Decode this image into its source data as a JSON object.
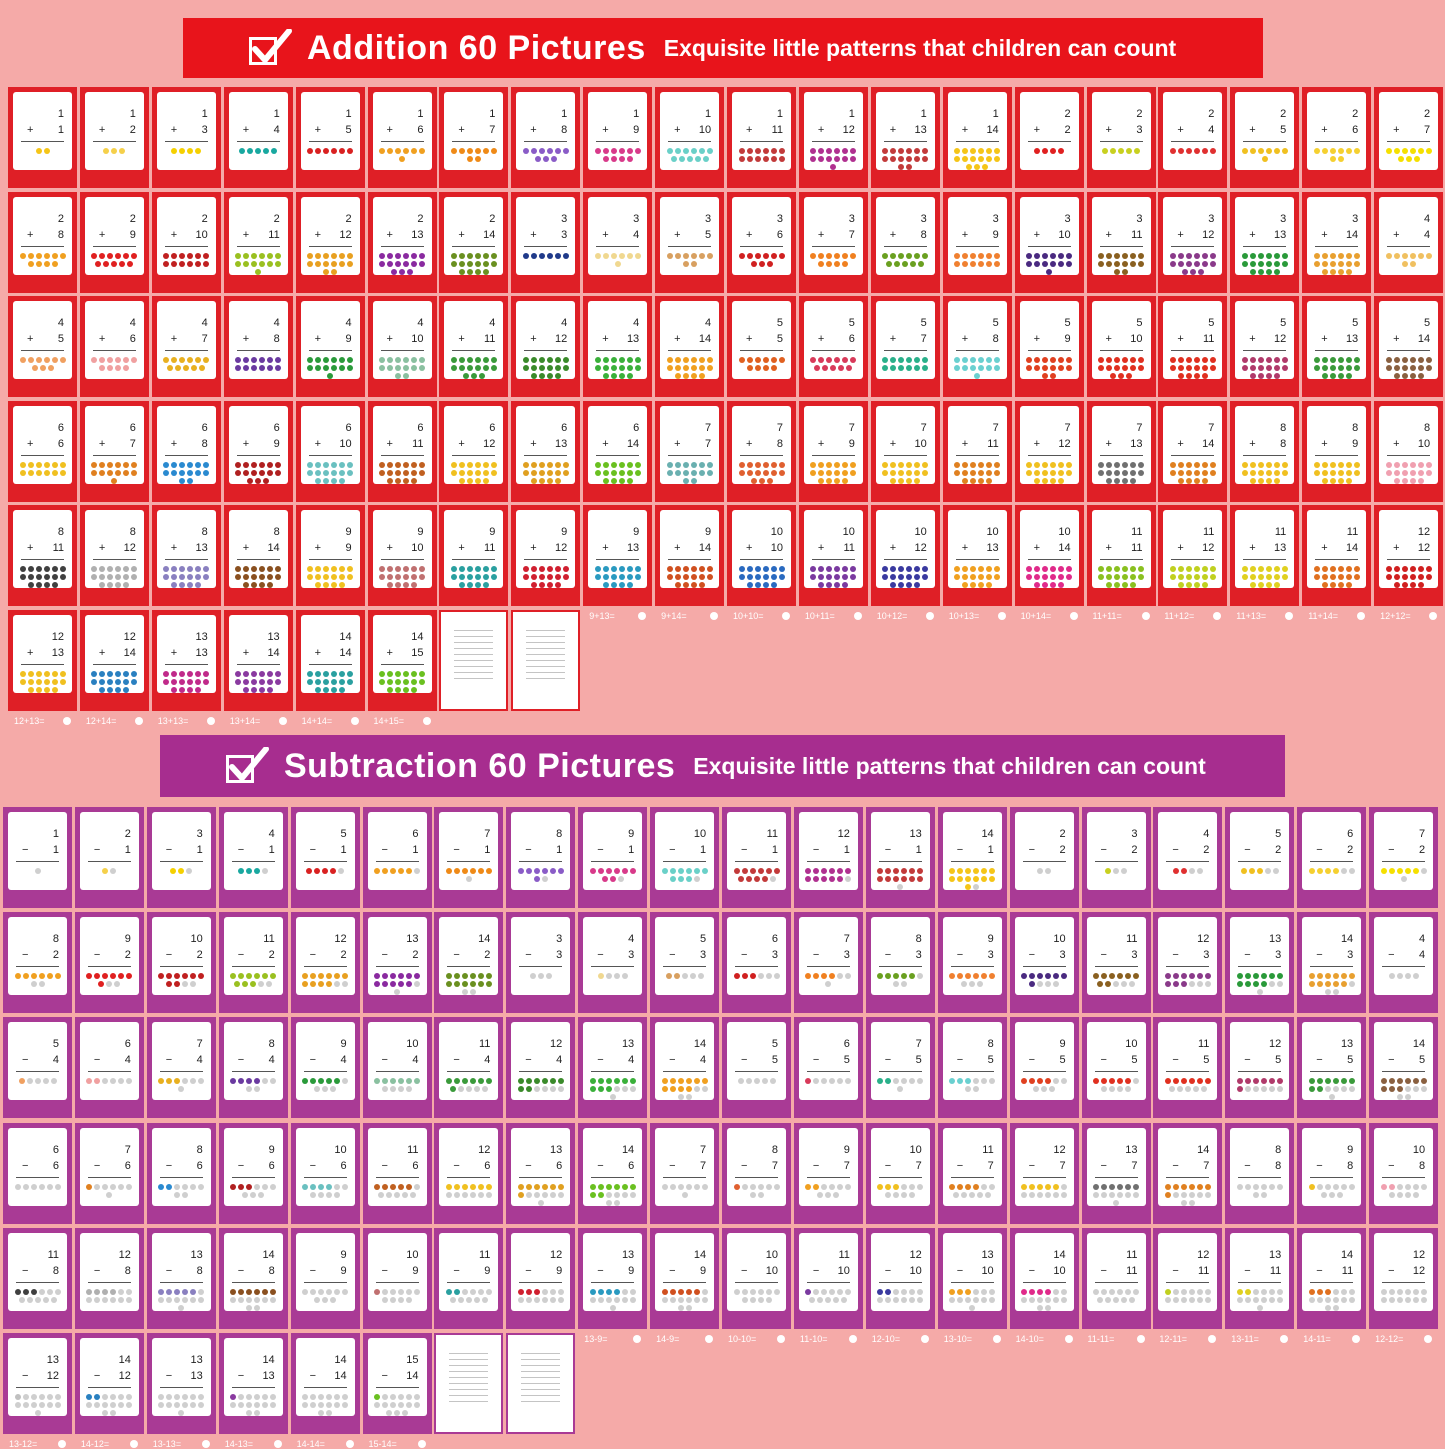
{
  "addition": {
    "title": "Addition 60 Pictures",
    "subtitle": "Exquisite little patterns that children can count",
    "color": "#df1f26",
    "cards": [
      {
        "a": 1,
        "b": 1,
        "color": "#f5c518"
      },
      {
        "a": 1,
        "b": 2,
        "color": "#f5d04a"
      },
      {
        "a": 1,
        "b": 3,
        "color": "#f5d000"
      },
      {
        "a": 1,
        "b": 4,
        "color": "#19a8a0"
      },
      {
        "a": 1,
        "b": 5,
        "color": "#d92121"
      },
      {
        "a": 1,
        "b": 6,
        "color": "#f0a020"
      },
      {
        "a": 1,
        "b": 7,
        "color": "#ef8a17"
      },
      {
        "a": 1,
        "b": 8,
        "color": "#8a5cc7"
      },
      {
        "a": 1,
        "b": 9,
        "color": "#d83a8a"
      },
      {
        "a": 1,
        "b": 10,
        "color": "#6ad0c8"
      },
      {
        "a": 1,
        "b": 11,
        "color": "#c23a3a"
      },
      {
        "a": 1,
        "b": 12,
        "color": "#b03090"
      },
      {
        "a": 1,
        "b": 13,
        "color": "#c23a3a"
      },
      {
        "a": 1,
        "b": 14,
        "color": "#f5c518"
      },
      {
        "a": 2,
        "b": 2,
        "color": "#e02020"
      },
      {
        "a": 2,
        "b": 3,
        "color": "#c8d020"
      },
      {
        "a": 2,
        "b": 4,
        "color": "#e03030"
      },
      {
        "a": 2,
        "b": 5,
        "color": "#f0c020"
      },
      {
        "a": 2,
        "b": 6,
        "color": "#f5d030"
      },
      {
        "a": 2,
        "b": 7,
        "color": "#f5e000"
      },
      {
        "a": 2,
        "b": 8,
        "color": "#f0a020"
      },
      {
        "a": 2,
        "b": 9,
        "color": "#e02020"
      },
      {
        "a": 2,
        "b": 10,
        "color": "#c02020"
      },
      {
        "a": 2,
        "b": 11,
        "color": "#9ac020"
      },
      {
        "a": 2,
        "b": 12,
        "color": "#e8a020"
      },
      {
        "a": 2,
        "b": 13,
        "color": "#8a2aa0"
      },
      {
        "a": 2,
        "b": 14,
        "color": "#6a9020"
      },
      {
        "a": 3,
        "b": 3,
        "color": "#203a8a"
      },
      {
        "a": 3,
        "b": 4,
        "color": "#f0d890"
      },
      {
        "a": 3,
        "b": 5,
        "color": "#d8a060"
      },
      {
        "a": 3,
        "b": 6,
        "color": "#d02020"
      },
      {
        "a": 3,
        "b": 7,
        "color": "#f08020"
      },
      {
        "a": 3,
        "b": 8,
        "color": "#6aa020"
      },
      {
        "a": 3,
        "b": 9,
        "color": "#f08030"
      },
      {
        "a": 3,
        "b": 10,
        "color": "#4a2a80"
      },
      {
        "a": 3,
        "b": 11,
        "color": "#8a6020"
      },
      {
        "a": 3,
        "b": 12,
        "color": "#8a3a8a"
      },
      {
        "a": 3,
        "b": 13,
        "color": "#2a9a3a"
      },
      {
        "a": 3,
        "b": 14,
        "color": "#e8a030"
      },
      {
        "a": 4,
        "b": 4,
        "color": "#f0c060"
      },
      {
        "a": 4,
        "b": 5,
        "color": "#f0a060"
      },
      {
        "a": 4,
        "b": 6,
        "color": "#f0a0a0"
      },
      {
        "a": 4,
        "b": 7,
        "color": "#e8b020"
      },
      {
        "a": 4,
        "b": 8,
        "color": "#6a3aa0"
      },
      {
        "a": 4,
        "b": 9,
        "color": "#2a9a3a"
      },
      {
        "a": 4,
        "b": 10,
        "color": "#8ac0a0"
      },
      {
        "a": 4,
        "b": 11,
        "color": "#3a9a3a"
      },
      {
        "a": 4,
        "b": 12,
        "color": "#3a8a2a"
      },
      {
        "a": 4,
        "b": 13,
        "color": "#3ab03a"
      },
      {
        "a": 4,
        "b": 14,
        "color": "#f0a020"
      },
      {
        "a": 5,
        "b": 5,
        "color": "#e06020"
      },
      {
        "a": 5,
        "b": 6,
        "color": "#d83a5a"
      },
      {
        "a": 5,
        "b": 7,
        "color": "#2ab08a"
      },
      {
        "a": 5,
        "b": 8,
        "color": "#6ad0d0"
      },
      {
        "a": 5,
        "b": 9,
        "color": "#e04020"
      },
      {
        "a": 5,
        "b": 10,
        "color": "#e03020"
      },
      {
        "a": 5,
        "b": 11,
        "color": "#e03020"
      },
      {
        "a": 5,
        "b": 12,
        "color": "#b03a6a"
      },
      {
        "a": 5,
        "b": 13,
        "color": "#3a9a3a"
      },
      {
        "a": 5,
        "b": 14,
        "color": "#8a6040"
      },
      {
        "a": 6,
        "b": 6,
        "color": "#f0c020"
      },
      {
        "a": 6,
        "b": 7,
        "color": "#e08020"
      },
      {
        "a": 6,
        "b": 8,
        "color": "#2a8ad0"
      },
      {
        "a": 6,
        "b": 9,
        "color": "#b02020"
      },
      {
        "a": 6,
        "b": 10,
        "color": "#6ac0c0"
      },
      {
        "a": 6,
        "b": 11,
        "color": "#c06020"
      },
      {
        "a": 6,
        "b": 12,
        "color": "#f0c020"
      },
      {
        "a": 6,
        "b": 13,
        "color": "#e0a020"
      },
      {
        "a": 6,
        "b": 14,
        "color": "#6ac020"
      },
      {
        "a": 7,
        "b": 7,
        "color": "#6ab0b0"
      },
      {
        "a": 7,
        "b": 8,
        "color": "#e06030"
      },
      {
        "a": 7,
        "b": 9,
        "color": "#f0a020"
      },
      {
        "a": 7,
        "b": 10,
        "color": "#f0c020"
      },
      {
        "a": 7,
        "b": 11,
        "color": "#e08020"
      },
      {
        "a": 7,
        "b": 12,
        "color": "#f0c020"
      },
      {
        "a": 7,
        "b": 13,
        "color": "#707070"
      },
      {
        "a": 7,
        "b": 14,
        "color": "#e08020"
      },
      {
        "a": 8,
        "b": 8,
        "color": "#f0c020"
      },
      {
        "a": 8,
        "b": 9,
        "color": "#f0c020"
      },
      {
        "a": 8,
        "b": 10,
        "color": "#f0a0b0"
      },
      {
        "a": 8,
        "b": 11,
        "color": "#404040"
      },
      {
        "a": 8,
        "b": 12,
        "color": "#b0b0b0"
      },
      {
        "a": 8,
        "b": 13,
        "color": "#8a80c0"
      },
      {
        "a": 8,
        "b": 14,
        "color": "#8a5020"
      },
      {
        "a": 9,
        "b": 9,
        "color": "#f0c020"
      },
      {
        "a": 9,
        "b": 10,
        "color": "#c07070"
      },
      {
        "a": 9,
        "b": 11,
        "color": "#2aa0a0"
      },
      {
        "a": 9,
        "b": 12,
        "color": "#d02030"
      },
      {
        "a": 9,
        "b": 13,
        "color": "#2a9ac0"
      },
      {
        "a": 9,
        "b": 14,
        "color": "#d05020"
      },
      {
        "a": 10,
        "b": 10,
        "color": "#2a6ac0"
      },
      {
        "a": 10,
        "b": 11,
        "color": "#7a3aa0"
      },
      {
        "a": 10,
        "b": 12,
        "color": "#3a3aa0"
      },
      {
        "a": 10,
        "b": 13,
        "color": "#f0a020"
      },
      {
        "a": 10,
        "b": 14,
        "color": "#e02a8a"
      },
      {
        "a": 11,
        "b": 11,
        "color": "#8ac020"
      },
      {
        "a": 11,
        "b": 12,
        "color": "#c0d020"
      },
      {
        "a": 11,
        "b": 13,
        "color": "#e0d020"
      },
      {
        "a": 11,
        "b": 14,
        "color": "#e07020"
      },
      {
        "a": 12,
        "b": 12,
        "color": "#d02020"
      },
      {
        "a": 12,
        "b": 13,
        "color": "#f0c020"
      },
      {
        "a": 12,
        "b": 14,
        "color": "#2a80c0"
      },
      {
        "a": 13,
        "b": 13,
        "color": "#c02a8a"
      },
      {
        "a": 13,
        "b": 14,
        "color": "#8a3aa0"
      },
      {
        "a": 14,
        "b": 14,
        "color": "#2aa0a0"
      },
      {
        "a": 14,
        "b": 15,
        "color": "#6ac020"
      }
    ]
  },
  "subtraction": {
    "title": "Subtraction 60 Pictures",
    "subtitle": "Exquisite little patterns that children can count",
    "color": "#a93a95",
    "cards": [
      {
        "a": 1,
        "b": 1,
        "color": "#d0d0d0"
      },
      {
        "a": 2,
        "b": 1,
        "color": "#f5d04a"
      },
      {
        "a": 3,
        "b": 1,
        "color": "#f5d000"
      },
      {
        "a": 4,
        "b": 1,
        "color": "#19a8a0"
      },
      {
        "a": 5,
        "b": 1,
        "color": "#d92121"
      },
      {
        "a": 6,
        "b": 1,
        "color": "#f0a020"
      },
      {
        "a": 7,
        "b": 1,
        "color": "#ef8a17"
      },
      {
        "a": 8,
        "b": 1,
        "color": "#8a5cc7"
      },
      {
        "a": 9,
        "b": 1,
        "color": "#d83a8a"
      },
      {
        "a": 10,
        "b": 1,
        "color": "#6ad0c8"
      },
      {
        "a": 11,
        "b": 1,
        "color": "#c23a3a"
      },
      {
        "a": 12,
        "b": 1,
        "color": "#b03090"
      },
      {
        "a": 13,
        "b": 1,
        "color": "#c23a3a"
      },
      {
        "a": 14,
        "b": 1,
        "color": "#f5c518"
      },
      {
        "a": 2,
        "b": 2,
        "color": "#c0c0c0"
      },
      {
        "a": 3,
        "b": 2,
        "color": "#c8d020"
      },
      {
        "a": 4,
        "b": 2,
        "color": "#e03030"
      },
      {
        "a": 5,
        "b": 2,
        "color": "#f0c020"
      },
      {
        "a": 6,
        "b": 2,
        "color": "#f5d030"
      },
      {
        "a": 7,
        "b": 2,
        "color": "#f5e000"
      },
      {
        "a": 8,
        "b": 2,
        "color": "#f0a020"
      },
      {
        "a": 9,
        "b": 2,
        "color": "#e02020"
      },
      {
        "a": 10,
        "b": 2,
        "color": "#c02020"
      },
      {
        "a": 11,
        "b": 2,
        "color": "#9ac020"
      },
      {
        "a": 12,
        "b": 2,
        "color": "#e8a020"
      },
      {
        "a": 13,
        "b": 2,
        "color": "#8a2aa0"
      },
      {
        "a": 14,
        "b": 2,
        "color": "#6a9020"
      },
      {
        "a": 3,
        "b": 3,
        "color": "#c0c0c0"
      },
      {
        "a": 4,
        "b": 3,
        "color": "#f0d890"
      },
      {
        "a": 5,
        "b": 3,
        "color": "#d8a060"
      },
      {
        "a": 6,
        "b": 3,
        "color": "#d02020"
      },
      {
        "a": 7,
        "b": 3,
        "color": "#f08020"
      },
      {
        "a": 8,
        "b": 3,
        "color": "#6aa020"
      },
      {
        "a": 9,
        "b": 3,
        "color": "#f08030"
      },
      {
        "a": 10,
        "b": 3,
        "color": "#4a2a80"
      },
      {
        "a": 11,
        "b": 3,
        "color": "#8a6020"
      },
      {
        "a": 12,
        "b": 3,
        "color": "#8a3a8a"
      },
      {
        "a": 13,
        "b": 3,
        "color": "#2a9a3a"
      },
      {
        "a": 14,
        "b": 3,
        "color": "#e8a030"
      },
      {
        "a": 4,
        "b": 4,
        "color": "#c0c0c0"
      },
      {
        "a": 5,
        "b": 4,
        "color": "#f0a060"
      },
      {
        "a": 6,
        "b": 4,
        "color": "#f0a0a0"
      },
      {
        "a": 7,
        "b": 4,
        "color": "#e8b020"
      },
      {
        "a": 8,
        "b": 4,
        "color": "#6a3aa0"
      },
      {
        "a": 9,
        "b": 4,
        "color": "#2a9a3a"
      },
      {
        "a": 10,
        "b": 4,
        "color": "#8ac0a0"
      },
      {
        "a": 11,
        "b": 4,
        "color": "#3a9a3a"
      },
      {
        "a": 12,
        "b": 4,
        "color": "#3a8a2a"
      },
      {
        "a": 13,
        "b": 4,
        "color": "#3ab03a"
      },
      {
        "a": 14,
        "b": 4,
        "color": "#f0a020"
      },
      {
        "a": 5,
        "b": 5,
        "color": "#c0c0c0"
      },
      {
        "a": 6,
        "b": 5,
        "color": "#d83a5a"
      },
      {
        "a": 7,
        "b": 5,
        "color": "#2ab08a"
      },
      {
        "a": 8,
        "b": 5,
        "color": "#6ad0d0"
      },
      {
        "a": 9,
        "b": 5,
        "color": "#e04020"
      },
      {
        "a": 10,
        "b": 5,
        "color": "#e03020"
      },
      {
        "a": 11,
        "b": 5,
        "color": "#e03020"
      },
      {
        "a": 12,
        "b": 5,
        "color": "#b03a6a"
      },
      {
        "a": 13,
        "b": 5,
        "color": "#3a9a3a"
      },
      {
        "a": 14,
        "b": 5,
        "color": "#8a6040"
      },
      {
        "a": 6,
        "b": 6,
        "color": "#c0c0c0"
      },
      {
        "a": 7,
        "b": 6,
        "color": "#e08020"
      },
      {
        "a": 8,
        "b": 6,
        "color": "#2a8ad0"
      },
      {
        "a": 9,
        "b": 6,
        "color": "#b02020"
      },
      {
        "a": 10,
        "b": 6,
        "color": "#6ac0c0"
      },
      {
        "a": 11,
        "b": 6,
        "color": "#c06020"
      },
      {
        "a": 12,
        "b": 6,
        "color": "#f0c020"
      },
      {
        "a": 13,
        "b": 6,
        "color": "#e0a020"
      },
      {
        "a": 14,
        "b": 6,
        "color": "#6ac020"
      },
      {
        "a": 7,
        "b": 7,
        "color": "#c0c0c0"
      },
      {
        "a": 8,
        "b": 7,
        "color": "#e06030"
      },
      {
        "a": 9,
        "b": 7,
        "color": "#f0a020"
      },
      {
        "a": 10,
        "b": 7,
        "color": "#f0c020"
      },
      {
        "a": 11,
        "b": 7,
        "color": "#e08020"
      },
      {
        "a": 12,
        "b": 7,
        "color": "#f0c020"
      },
      {
        "a": 13,
        "b": 7,
        "color": "#707070"
      },
      {
        "a": 14,
        "b": 7,
        "color": "#e08020"
      },
      {
        "a": 8,
        "b": 8,
        "color": "#c0c0c0"
      },
      {
        "a": 9,
        "b": 8,
        "color": "#f0c020"
      },
      {
        "a": 10,
        "b": 8,
        "color": "#f0a0b0"
      },
      {
        "a": 11,
        "b": 8,
        "color": "#404040"
      },
      {
        "a": 12,
        "b": 8,
        "color": "#b0b0b0"
      },
      {
        "a": 13,
        "b": 8,
        "color": "#8a80c0"
      },
      {
        "a": 14,
        "b": 8,
        "color": "#8a5020"
      },
      {
        "a": 9,
        "b": 9,
        "color": "#c0c0c0"
      },
      {
        "a": 10,
        "b": 9,
        "color": "#c07070"
      },
      {
        "a": 11,
        "b": 9,
        "color": "#2aa0a0"
      },
      {
        "a": 12,
        "b": 9,
        "color": "#d02030"
      },
      {
        "a": 13,
        "b": 9,
        "color": "#2a9ac0"
      },
      {
        "a": 14,
        "b": 9,
        "color": "#d05020"
      },
      {
        "a": 10,
        "b": 10,
        "color": "#c0c0c0"
      },
      {
        "a": 11,
        "b": 10,
        "color": "#7a3aa0"
      },
      {
        "a": 12,
        "b": 10,
        "color": "#3a3aa0"
      },
      {
        "a": 13,
        "b": 10,
        "color": "#f0a020"
      },
      {
        "a": 14,
        "b": 10,
        "color": "#e02a8a"
      },
      {
        "a": 11,
        "b": 11,
        "color": "#c0c0c0"
      },
      {
        "a": 12,
        "b": 11,
        "color": "#c0d020"
      },
      {
        "a": 13,
        "b": 11,
        "color": "#e0d020"
      },
      {
        "a": 14,
        "b": 11,
        "color": "#e07020"
      },
      {
        "a": 12,
        "b": 12,
        "color": "#c0c0c0"
      },
      {
        "a": 13,
        "b": 12,
        "color": "#c0c0c0"
      },
      {
        "a": 14,
        "b": 12,
        "color": "#2a80c0"
      },
      {
        "a": 13,
        "b": 13,
        "color": "#c0c0c0"
      },
      {
        "a": 14,
        "b": 13,
        "color": "#8a3aa0"
      },
      {
        "a": 14,
        "b": 14,
        "color": "#c0c0c0"
      },
      {
        "a": 15,
        "b": 14,
        "color": "#6ac020"
      }
    ]
  }
}
